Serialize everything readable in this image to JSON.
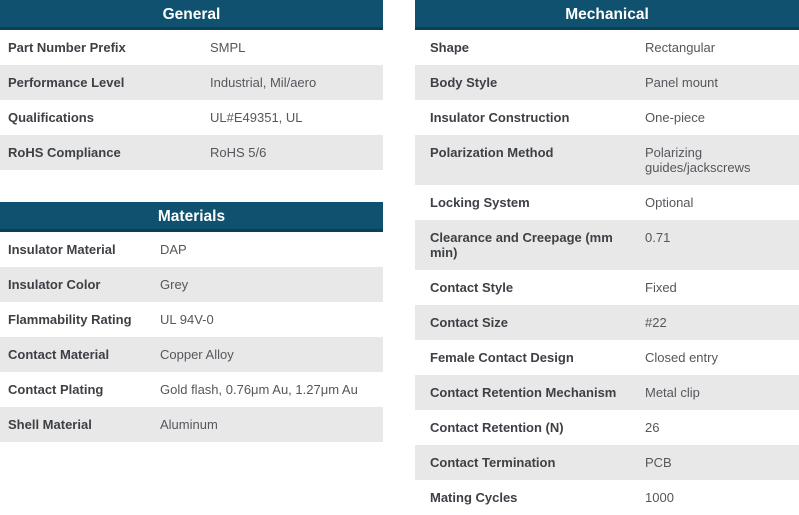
{
  "colors": {
    "header_bg": "#10516f",
    "header_border": "#0b3e57",
    "header_text": "#ffffff",
    "row_bg": "#ffffff",
    "row_alt_bg": "#e8e8e8",
    "label_text": "#3d4045",
    "value_text": "#54575c"
  },
  "tables": [
    {
      "title": "General",
      "rows": [
        {
          "label": "Part Number Prefix",
          "value": "SMPL"
        },
        {
          "label": "Performance Level",
          "value": "Industrial, Mil/aero"
        },
        {
          "label": "Qualifications",
          "value": "UL#E49351, UL"
        },
        {
          "label": "RoHS Compliance",
          "value": "RoHS 5/6"
        }
      ]
    },
    {
      "title": "Materials",
      "rows": [
        {
          "label": "Insulator Material",
          "value": "DAP"
        },
        {
          "label": "Insulator Color",
          "value": "Grey"
        },
        {
          "label": "Flammability Rating",
          "value": "UL 94V-0"
        },
        {
          "label": "Contact Material",
          "value": "Copper Alloy"
        },
        {
          "label": "Contact Plating",
          "value": "Gold flash, 0.76μm Au, 1.27μm Au"
        },
        {
          "label": "Shell Material",
          "value": "Aluminum"
        }
      ]
    },
    {
      "title": "Mechanical",
      "rows": [
        {
          "label": "Shape",
          "value": "Rectangular"
        },
        {
          "label": "Body Style",
          "value": "Panel mount"
        },
        {
          "label": "Insulator Construction",
          "value": "One-piece"
        },
        {
          "label": "Polarization Method",
          "value": "Polarizing guides/jackscrews"
        },
        {
          "label": "Locking System",
          "value": "Optional"
        },
        {
          "label": "Clearance and Creepage (mm min)",
          "value": "0.71"
        },
        {
          "label": "Contact Style",
          "value": "Fixed"
        },
        {
          "label": "Contact Size",
          "value": "#22"
        },
        {
          "label": "Female Contact Design",
          "value": "Closed entry"
        },
        {
          "label": "Contact Retention Mechanism",
          "value": "Metal clip"
        },
        {
          "label": "Contact Retention (N)",
          "value": "26"
        },
        {
          "label": "Contact Termination",
          "value": "PCB"
        },
        {
          "label": "Mating Cycles",
          "value": "1000"
        }
      ]
    }
  ]
}
